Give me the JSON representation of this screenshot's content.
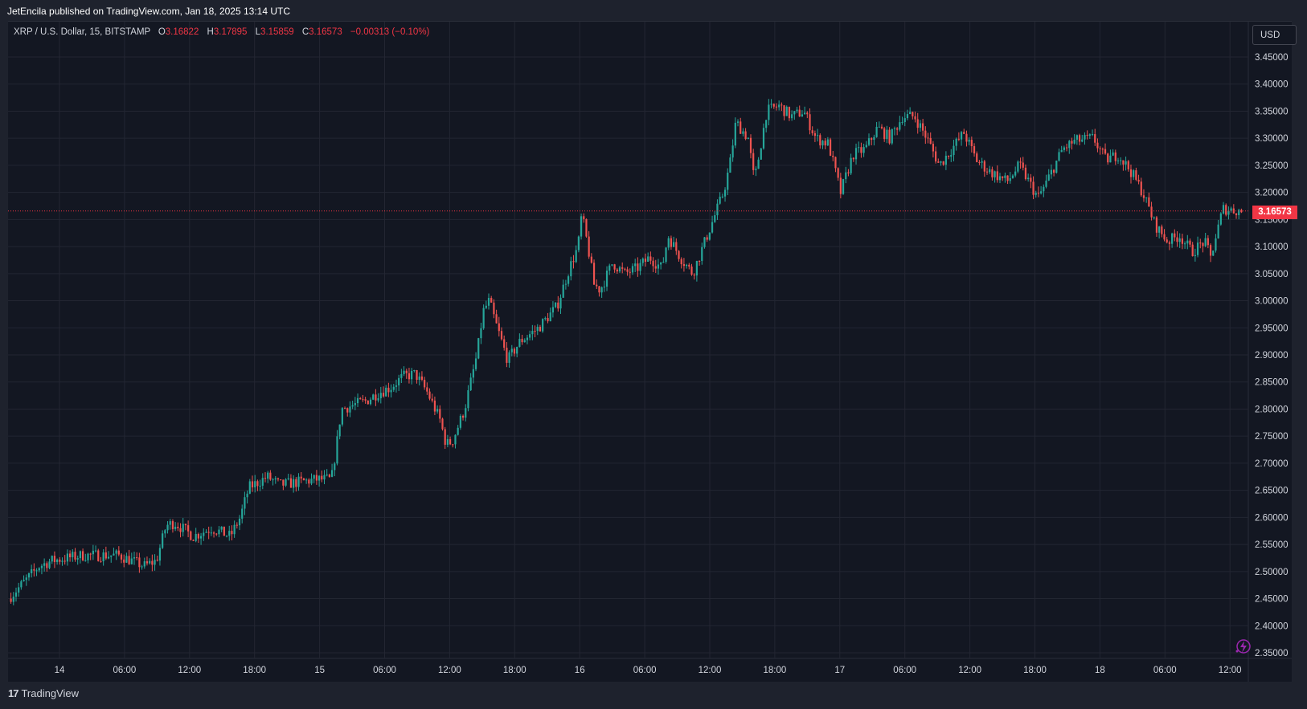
{
  "header": {
    "publish_text": "JetEncila published on TradingView.com, Jan 18, 2025 13:14 UTC"
  },
  "legend": {
    "symbol": "XRP / U.S. Dollar, 15, BITSTAMP",
    "o_label": "O",
    "o_value": "3.16822",
    "h_label": "H",
    "h_value": "3.17895",
    "l_label": "L",
    "l_value": "3.15859",
    "c_label": "C",
    "c_value": "3.16573",
    "change": "−0.00313 (−0.10%)"
  },
  "currency": "USD",
  "last_price": "3.16573",
  "footer": {
    "logo_text": "TradingView",
    "logo_mark": "17"
  },
  "colors": {
    "background": "#131722",
    "frame": "#1e222d",
    "grid": "#232632",
    "up": "#26a69a",
    "down": "#ef5350",
    "price_line": "#f23645"
  },
  "chart_data": {
    "type": "candlestick",
    "ylim": [
      2.35,
      3.45
    ],
    "y_ticks": [
      "3.45000",
      "3.40000",
      "3.35000",
      "3.30000",
      "3.25000",
      "3.20000",
      "3.15000",
      "3.10000",
      "3.05000",
      "3.00000",
      "2.95000",
      "2.90000",
      "2.85000",
      "2.80000",
      "2.75000",
      "2.70000",
      "2.65000",
      "2.60000",
      "2.55000",
      "2.50000",
      "2.45000",
      "2.40000",
      "2.35000"
    ],
    "x_ticks": [
      "14",
      "06:00",
      "12:00",
      "18:00",
      "15",
      "06:00",
      "12:00",
      "18:00",
      "16",
      "06:00",
      "12:00",
      "18:00",
      "17",
      "06:00",
      "12:00",
      "18:00",
      "18",
      "06:00",
      "12:00"
    ],
    "last_price": 3.16573,
    "path": [
      [
        0.0,
        2.45
      ],
      [
        0.025,
        2.51
      ],
      [
        0.035,
        2.52
      ],
      [
        0.06,
        2.53
      ],
      [
        0.09,
        2.53
      ],
      [
        0.1,
        2.52
      ],
      [
        0.11,
        2.51
      ],
      [
        0.12,
        2.52
      ],
      [
        0.128,
        2.585
      ],
      [
        0.135,
        2.59
      ],
      [
        0.15,
        2.565
      ],
      [
        0.165,
        2.58
      ],
      [
        0.18,
        2.565
      ],
      [
        0.188,
        2.6
      ],
      [
        0.195,
        2.655
      ],
      [
        0.21,
        2.675
      ],
      [
        0.22,
        2.66
      ],
      [
        0.25,
        2.67
      ],
      [
        0.262,
        2.67
      ],
      [
        0.266,
        2.73
      ],
      [
        0.27,
        2.8
      ],
      [
        0.29,
        2.815
      ],
      [
        0.3,
        2.83
      ],
      [
        0.31,
        2.84
      ],
      [
        0.32,
        2.86
      ],
      [
        0.33,
        2.865
      ],
      [
        0.34,
        2.83
      ],
      [
        0.35,
        2.78
      ],
      [
        0.355,
        2.735
      ],
      [
        0.36,
        2.74
      ],
      [
        0.37,
        2.8
      ],
      [
        0.375,
        2.85
      ],
      [
        0.38,
        2.9
      ],
      [
        0.385,
        2.98
      ],
      [
        0.39,
        3.0
      ],
      [
        0.395,
        2.96
      ],
      [
        0.405,
        2.89
      ],
      [
        0.415,
        2.925
      ],
      [
        0.43,
        2.95
      ],
      [
        0.445,
        2.99
      ],
      [
        0.455,
        3.06
      ],
      [
        0.462,
        3.1
      ],
      [
        0.465,
        3.16
      ],
      [
        0.47,
        3.1
      ],
      [
        0.475,
        3.03
      ],
      [
        0.48,
        3.02
      ],
      [
        0.49,
        3.07
      ],
      [
        0.5,
        3.05
      ],
      [
        0.51,
        3.06
      ],
      [
        0.52,
        3.08
      ],
      [
        0.53,
        3.06
      ],
      [
        0.535,
        3.12
      ],
      [
        0.545,
        3.08
      ],
      [
        0.555,
        3.05
      ],
      [
        0.56,
        3.08
      ],
      [
        0.57,
        3.14
      ],
      [
        0.58,
        3.2
      ],
      [
        0.585,
        3.25
      ],
      [
        0.59,
        3.33
      ],
      [
        0.6,
        3.3
      ],
      [
        0.605,
        3.22
      ],
      [
        0.615,
        3.35
      ],
      [
        0.625,
        3.36
      ],
      [
        0.635,
        3.34
      ],
      [
        0.645,
        3.35
      ],
      [
        0.655,
        3.3
      ],
      [
        0.665,
        3.29
      ],
      [
        0.675,
        3.2
      ],
      [
        0.685,
        3.27
      ],
      [
        0.695,
        3.28
      ],
      [
        0.705,
        3.32
      ],
      [
        0.715,
        3.3
      ],
      [
        0.725,
        3.34
      ],
      [
        0.735,
        3.34
      ],
      [
        0.745,
        3.3
      ],
      [
        0.755,
        3.25
      ],
      [
        0.765,
        3.28
      ],
      [
        0.775,
        3.31
      ],
      [
        0.785,
        3.26
      ],
      [
        0.795,
        3.24
      ],
      [
        0.81,
        3.22
      ],
      [
        0.82,
        3.25
      ],
      [
        0.835,
        3.19
      ],
      [
        0.84,
        3.21
      ],
      [
        0.855,
        3.28
      ],
      [
        0.865,
        3.295
      ],
      [
        0.88,
        3.3
      ],
      [
        0.89,
        3.26
      ],
      [
        0.9,
        3.27
      ],
      [
        0.91,
        3.24
      ],
      [
        0.92,
        3.2
      ],
      [
        0.93,
        3.14
      ],
      [
        0.94,
        3.11
      ],
      [
        0.95,
        3.12
      ],
      [
        0.96,
        3.09
      ],
      [
        0.97,
        3.11
      ],
      [
        0.975,
        3.08
      ],
      [
        0.985,
        3.17
      ],
      [
        1.0,
        3.165
      ]
    ]
  }
}
